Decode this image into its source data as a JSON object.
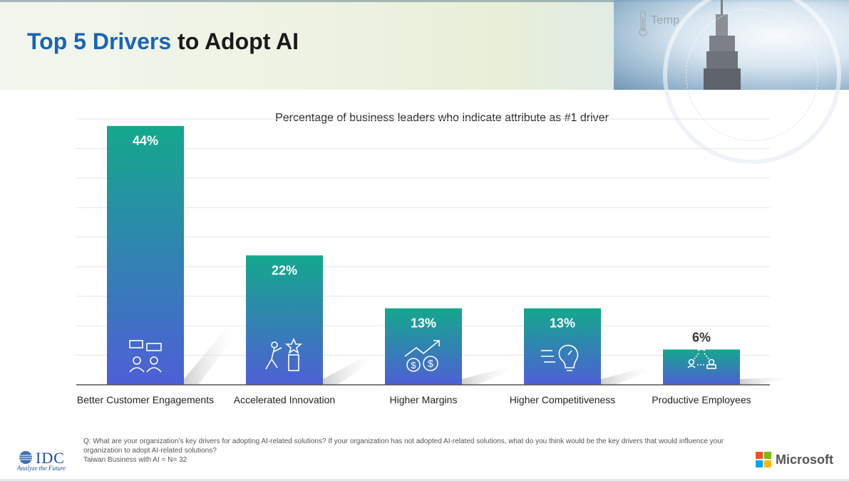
{
  "header": {
    "title_accent": "Top 5 Drivers",
    "title_rest": " to Adopt AI",
    "temp_label": "Temp"
  },
  "colors": {
    "title_accent": "#1665b7",
    "bar_top": "#14a88c",
    "bar_bottom": "#4e5fd6",
    "last_label": "#333333"
  },
  "chart_data": {
    "type": "bar",
    "title": "Percentage of business leaders who indicate attribute as #1 driver",
    "categories": [
      "Better Customer Engagements",
      "Accelerated Innovation",
      "Higher Margins",
      "Higher Competitiveness",
      "Productive Employees"
    ],
    "values": [
      44,
      22,
      13,
      13,
      6
    ],
    "value_labels": [
      "44%",
      "22%",
      "13%",
      "13%",
      "6%"
    ],
    "icons": [
      "customer-engagement-icon",
      "innovation-icon",
      "margins-icon",
      "competitiveness-icon",
      "productive-employees-icon"
    ],
    "ylim": [
      0,
      45
    ],
    "grid": true,
    "xlabel": "",
    "ylabel": ""
  },
  "footer": {
    "question": "Q: What are your organization’s key drivers for adopting AI-related solutions? If your organization has not adopted AI-related solutions, what do you think would be the key drivers that would influence your organization to adopt AI-related solutions?",
    "base": "Taiwan Business with AI = N= 32",
    "idc_name": "IDC",
    "idc_tagline": "Analyze the Future",
    "ms_name": "Microsoft"
  }
}
